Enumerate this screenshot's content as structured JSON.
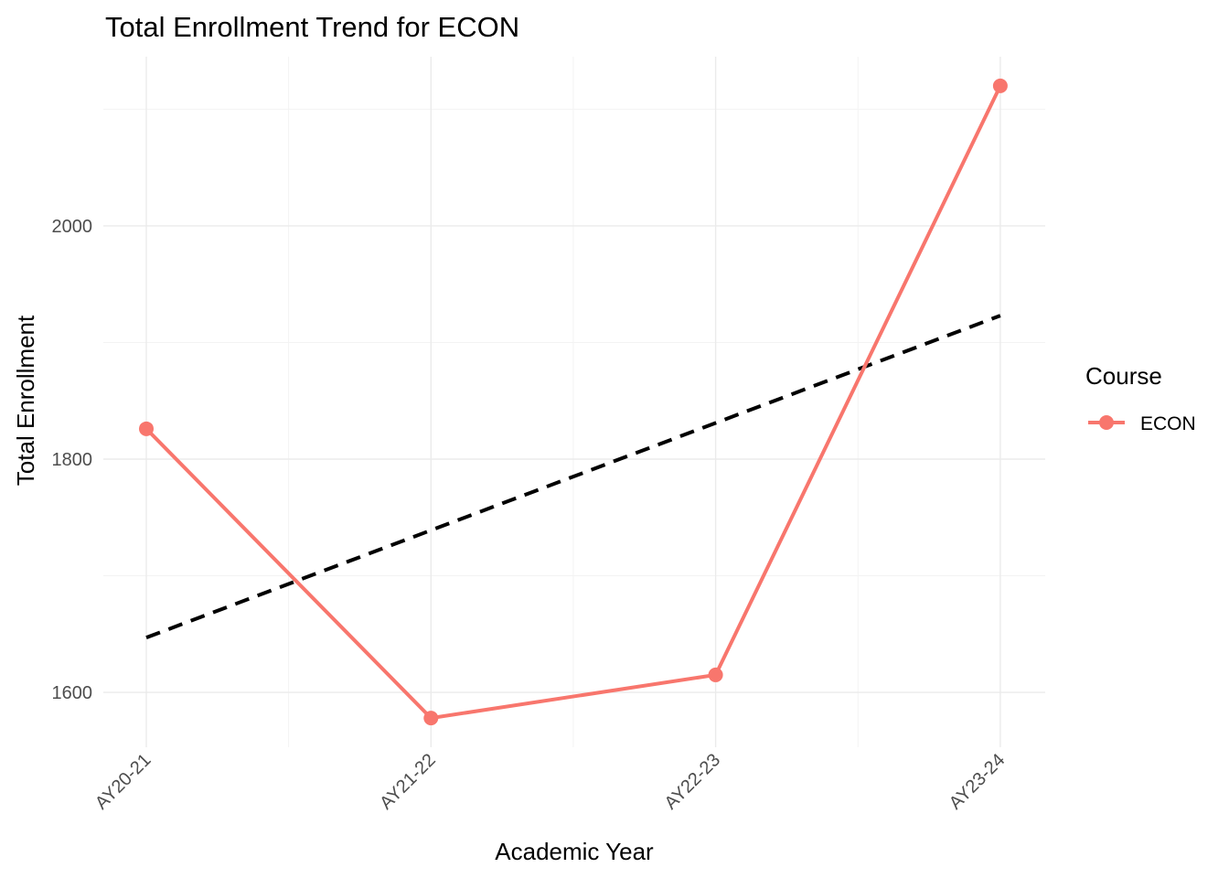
{
  "chart_data": {
    "type": "line",
    "title": "Total Enrollment Trend for ECON",
    "xlabel": "Academic Year",
    "ylabel": "Total Enrollment",
    "categories": [
      "AY20-21",
      "AY21-22",
      "AY22-23",
      "AY23-24"
    ],
    "series": [
      {
        "name": "ECON",
        "values": [
          1826,
          1578,
          1615,
          2120
        ],
        "color": "#f8766d"
      }
    ],
    "trend": {
      "values": [
        1647,
        1739,
        1831,
        1923
      ],
      "style": "dashed",
      "color": "#000000"
    },
    "ylim": [
      1553,
      2145
    ],
    "y_ticks": [
      1600,
      1800,
      2000
    ],
    "y_minor_ticks": [
      1700,
      1900,
      2100
    ],
    "grid": true,
    "legend": {
      "title": "Course",
      "position": "right",
      "entries": [
        "ECON"
      ]
    }
  }
}
